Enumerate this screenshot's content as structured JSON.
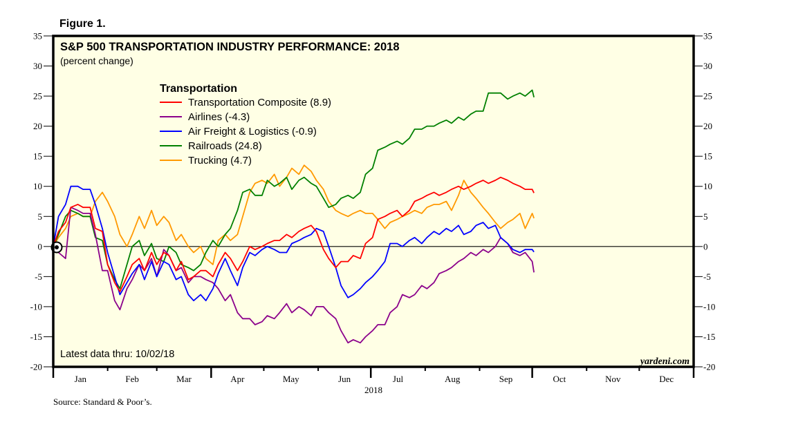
{
  "figure_label": "Figure 1.",
  "chart_data": {
    "type": "line",
    "title": "S&P 500 TRANSPORTATION INDUSTRY PERFORMANCE: 2018",
    "subtitle": "(percent change)",
    "xlabel": "2018",
    "ylabel": "",
    "ylim": [
      -20,
      35
    ],
    "yticks": [
      35,
      30,
      25,
      20,
      15,
      10,
      5,
      0,
      -5,
      -10,
      -15,
      -20
    ],
    "ytick_labels": [
      "35",
      "30",
      "25",
      "20",
      "15",
      "10",
      "5",
      "0",
      "-5",
      "-10",
      "-15",
      "-20"
    ],
    "xlim_days": [
      0,
      365
    ],
    "months": [
      "Jan",
      "Feb",
      "Mar",
      "Apr",
      "May",
      "Jun",
      "Jul",
      "Aug",
      "Sep",
      "Oct",
      "Nov",
      "Dec"
    ],
    "month_start_days": [
      0,
      31,
      59,
      90,
      120,
      151,
      181,
      212,
      243,
      273,
      304,
      334
    ],
    "zero_line": true,
    "grid": false,
    "legend_title": "Transportation",
    "legend_position": "top-left",
    "x_days": [
      0,
      3,
      7,
      10,
      14,
      17,
      21,
      24,
      28,
      31,
      35,
      38,
      42,
      45,
      49,
      52,
      56,
      59,
      63,
      66,
      70,
      73,
      77,
      80,
      84,
      87,
      91,
      94,
      98,
      101,
      105,
      108,
      112,
      115,
      119,
      122,
      126,
      129,
      133,
      136,
      140,
      143,
      147,
      150,
      154,
      157,
      161,
      164,
      168,
      171,
      175,
      178,
      182,
      185,
      189,
      192,
      196,
      199,
      203,
      206,
      210,
      213,
      217,
      220,
      224,
      227,
      231,
      234,
      238,
      241,
      245,
      248,
      252,
      255,
      259,
      262,
      266,
      269,
      273,
      274
    ],
    "series": [
      {
        "name": "Transportation Composite",
        "legend_label": "Transportation Composite (8.9)",
        "latest": 8.9,
        "color": "#ff0000",
        "values": [
          0,
          2.5,
          4,
          6.5,
          7,
          6.5,
          6.5,
          3,
          2.5,
          -3,
          -6,
          -7.5,
          -5,
          -3,
          -2,
          -4,
          -1,
          -3,
          -1,
          -1.5,
          -4,
          -2.5,
          -5.5,
          -5,
          -4,
          -4,
          -5,
          -3,
          -1,
          -2,
          -4,
          -2.5,
          0,
          -0.5,
          0,
          0.5,
          1,
          1,
          2,
          1.5,
          2.5,
          3,
          3.5,
          2.5,
          -0.5,
          -2,
          -3.5,
          -2.5,
          -2.5,
          -1.5,
          -2,
          0.5,
          1.5,
          4.5,
          5,
          5.5,
          6,
          5,
          6,
          7.5,
          8,
          8.5,
          9,
          8.5,
          9,
          9.5,
          10,
          9.5,
          10,
          10.5,
          11,
          10.5,
          11,
          11.5,
          11,
          10.5,
          10,
          9.5,
          9.5,
          8.9
        ]
      },
      {
        "name": "Airlines",
        "legend_label": "Airlines (-4.3)",
        "latest": -4.3,
        "color": "#8b008b",
        "values": [
          0,
          -1,
          -2,
          6.5,
          6,
          5.5,
          5.5,
          2,
          -4,
          -4,
          -9,
          -10.5,
          -7,
          -5.5,
          -3,
          -4,
          -2,
          -5,
          -0.5,
          -1.5,
          -4,
          -3.5,
          -6,
          -5,
          -5,
          -5.5,
          -6,
          -7,
          -9,
          -8,
          -11,
          -12,
          -12,
          -13,
          -12.5,
          -11.5,
          -12,
          -11,
          -9.5,
          -11,
          -10,
          -10.5,
          -11.5,
          -10,
          -10,
          -11,
          -12,
          -14,
          -16,
          -15.5,
          -16,
          -15,
          -14,
          -13,
          -13,
          -11,
          -10,
          -8,
          -8.5,
          -8,
          -6.5,
          -7,
          -6,
          -4.5,
          -4,
          -3.5,
          -2.5,
          -2,
          -1,
          -1.5,
          -0.5,
          -1,
          0,
          1.5,
          0.5,
          -1,
          -1.5,
          -1,
          -2.5,
          -4.3
        ]
      },
      {
        "name": "Air Freight & Logistics",
        "legend_label": "Air Freight & Logistics (-0.9)",
        "latest": -0.9,
        "color": "#0000ff",
        "values": [
          0,
          5,
          7,
          10,
          10,
          9.5,
          9.5,
          7,
          3,
          -1,
          -5,
          -8,
          -6,
          -4.5,
          -3,
          -5.5,
          -2.5,
          -5,
          -2.5,
          -3,
          -5.5,
          -5,
          -8,
          -9,
          -8,
          -9,
          -7,
          -4.5,
          -2,
          -4,
          -6.5,
          -3.5,
          -1,
          -1.5,
          -0.5,
          0,
          -0.5,
          -1,
          -1,
          0.5,
          1,
          1.5,
          2,
          3,
          2.5,
          0,
          -3.5,
          -6.5,
          -8.5,
          -8,
          -7,
          -6,
          -5,
          -4,
          -2.5,
          0.5,
          0.5,
          0,
          1,
          1.5,
          0.5,
          1.5,
          2.5,
          2,
          3,
          2.5,
          3.5,
          2,
          2.5,
          3.5,
          4,
          3,
          3.5,
          1.5,
          0.5,
          -0.5,
          -1,
          -0.5,
          -0.5,
          -0.9
        ]
      },
      {
        "name": "Railroads",
        "legend_label": "Railroads (24.8)",
        "latest": 24.8,
        "color": "#008000",
        "values": [
          0,
          2,
          5,
          6,
          5.5,
          5,
          5,
          1.5,
          1,
          -3,
          -5.5,
          -7,
          -3,
          0,
          1,
          -1.5,
          0.5,
          -2,
          -2.5,
          0,
          -1,
          -3,
          -3.5,
          -4,
          -3,
          -1,
          1,
          0,
          2,
          3,
          6,
          9,
          9.5,
          8.5,
          8.5,
          11,
          10,
          10.5,
          11.5,
          9.5,
          11,
          11.5,
          10.5,
          10,
          8,
          6.5,
          7,
          8,
          8.5,
          8,
          9,
          12,
          13,
          16,
          16.5,
          17,
          17.5,
          17,
          18,
          19.5,
          19.5,
          20,
          20,
          20.5,
          21,
          20.5,
          21.5,
          21,
          22,
          22.5,
          22.5,
          25.5,
          25.5,
          25.5,
          24.5,
          25,
          25.5,
          25,
          26,
          24.8
        ]
      },
      {
        "name": "Trucking",
        "legend_label": "Trucking (4.7)",
        "latest": 4.7,
        "color": "#ff9900",
        "values": [
          0,
          1.5,
          3,
          5,
          5.5,
          5,
          5,
          7.5,
          9,
          7.5,
          5,
          2,
          0,
          2,
          5,
          3,
          6,
          3.5,
          5,
          4,
          1,
          2,
          0,
          -1,
          0,
          -2,
          -3,
          1,
          2,
          1,
          2,
          5,
          9,
          10.5,
          11,
          10.5,
          12,
          10,
          11.5,
          13,
          12,
          13.5,
          12.5,
          11,
          9.5,
          7.5,
          6,
          5.5,
          5,
          5.5,
          6,
          5.5,
          5.5,
          4.5,
          3,
          4,
          4.5,
          5,
          5.5,
          6,
          5.5,
          6.5,
          7,
          7,
          7.5,
          6,
          8.5,
          11,
          9,
          8,
          6.5,
          5.5,
          4,
          3,
          4,
          4.5,
          5.5,
          3,
          5.5,
          4.7
        ]
      }
    ]
  },
  "annotations": {
    "latest_data": "Latest data thru: 10/02/18",
    "watermark": "yardeni.com",
    "source": "Source: Standard & Poor’s."
  },
  "colors": {
    "plot_background": "#ffffe5",
    "frame": "#000000"
  }
}
